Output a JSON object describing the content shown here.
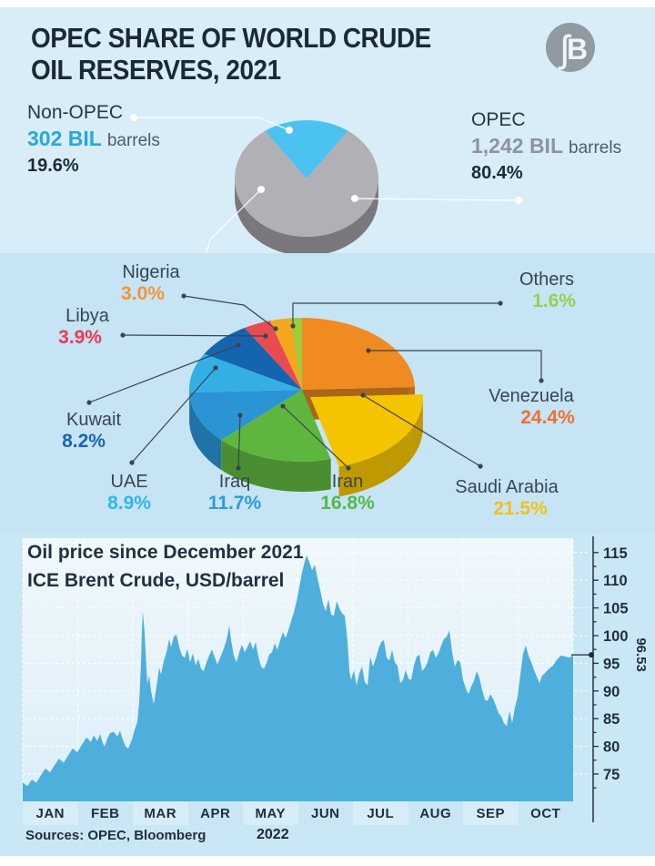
{
  "header": {
    "title_line1": "OPEC SHARE OF WORLD CRUDE",
    "title_line2": "OIL RESERVES, 2021",
    "logo_monogram": "ʃB"
  },
  "reserves_split": {
    "non_opec": {
      "label": "Non-OPEC",
      "amount": "302 BIL",
      "unit": "barrels",
      "share": "19.6%"
    },
    "opec": {
      "label": "OPEC",
      "amount": "1,242 BIL",
      "unit": "barrels",
      "share": "80.4%"
    }
  },
  "oil_chart": {
    "title": "Oil price since December 2021",
    "subtitle": "ICE Brent Crude, USD/barrel",
    "last_value_label": "96.53"
  },
  "footer": {
    "sources": "Sources: OPEC, Bloomberg",
    "year": "2022"
  },
  "colors": {
    "accent_cyan": "#4cc2f1",
    "non_opec_value": "#27a7df",
    "opec_value": "#8e949b",
    "leader_dark": "#3a4450",
    "area_fill": "#4fafdc",
    "area_stroke": "#1b7eb4"
  },
  "chart_data": [
    {
      "type": "pie",
      "name": "world-crude-reserves-split-2021",
      "title": "OPEC share of world crude oil reserves, 2021",
      "slices": [
        {
          "label": "OPEC",
          "value": 80.4,
          "color": "#b1b0b4",
          "annotation": "1,242 BIL barrels"
        },
        {
          "label": "Non-OPEC",
          "value": 19.6,
          "color": "#4cc2f1",
          "annotation": "302 BIL barrels"
        }
      ]
    },
    {
      "type": "pie",
      "name": "opec-members-share-of-reserves",
      "unit": "%",
      "slices": [
        {
          "label": "Venezuela",
          "value": 24.4,
          "color": "#ef8b20",
          "pct_color": "#f07030"
        },
        {
          "label": "Saudi Arabia",
          "value": 21.5,
          "color": "#f5c400",
          "pct_color": "#f2c118"
        },
        {
          "label": "Iran",
          "value": 16.8,
          "color": "#5fb63f",
          "pct_color": "#53b848"
        },
        {
          "label": "Iraq",
          "value": 11.7,
          "color": "#2b94d4",
          "pct_color": "#2e9bd8"
        },
        {
          "label": "UAE",
          "value": 8.9,
          "color": "#33afe4",
          "pct_color": "#2fb7ea"
        },
        {
          "label": "Kuwait",
          "value": 8.2,
          "color": "#1465ae",
          "pct_color": "#1b64b4"
        },
        {
          "label": "Libya",
          "value": 3.9,
          "color": "#e94b52",
          "pct_color": "#e93a52"
        },
        {
          "label": "Nigeria",
          "value": 3.0,
          "color": "#f4a71d",
          "pct_color": "#f0953c"
        },
        {
          "label": "Others",
          "value": 1.6,
          "color": "#9ecb3c",
          "pct_color": "#97d053"
        }
      ]
    },
    {
      "type": "area",
      "name": "brent-price",
      "title": "Oil price since December 2021",
      "subtitle": "ICE Brent Crude, USD/barrel",
      "x_tick_labels": [
        "JAN",
        "FEB",
        "MAR",
        "APR",
        "MAY",
        "JUN",
        "JUL",
        "AUG",
        "SEP",
        "OCT"
      ],
      "x_year": "2022",
      "y_ticks": [
        75,
        80,
        85,
        90,
        95,
        100,
        105,
        110,
        115
      ],
      "y_minor_step": 2.5,
      "ylim": [
        70,
        117.5
      ],
      "last_value": 96.53,
      "points": [
        [
          0,
          73.5
        ],
        [
          5,
          72.8
        ],
        [
          10,
          74
        ],
        [
          15,
          73.4
        ],
        [
          20,
          74.8
        ],
        [
          25,
          76
        ],
        [
          30,
          75.3
        ],
        [
          35,
          76.6
        ],
        [
          40,
          77.8
        ],
        [
          45,
          77
        ],
        [
          50,
          78.4
        ],
        [
          55,
          79.6
        ],
        [
          60,
          78.9
        ],
        [
          65,
          80.3
        ],
        [
          70,
          81.6
        ],
        [
          75,
          80.8
        ],
        [
          78,
          82
        ],
        [
          82,
          81
        ],
        [
          85,
          82.2
        ],
        [
          88,
          80.6
        ],
        [
          90,
          80
        ],
        [
          93,
          81.4
        ],
        [
          96,
          82.4
        ],
        [
          100,
          82.6
        ],
        [
          104,
          81.8
        ],
        [
          107,
          82.8
        ],
        [
          110,
          81.2
        ],
        [
          113,
          80
        ],
        [
          116,
          79.6
        ],
        [
          120,
          81.2
        ],
        [
          123,
          83
        ],
        [
          126,
          84.4
        ],
        [
          128,
          88
        ],
        [
          130,
          95
        ],
        [
          131,
          101
        ],
        [
          132,
          104.3
        ],
        [
          134,
          100.5
        ],
        [
          136,
          94
        ],
        [
          137,
          91.3
        ],
        [
          139,
          92.8
        ],
        [
          141,
          90
        ],
        [
          144,
          87.6
        ],
        [
          147,
          90.8
        ],
        [
          150,
          94.2
        ],
        [
          152,
          93
        ],
        [
          155,
          95.4
        ],
        [
          158,
          97
        ],
        [
          161,
          99.4
        ],
        [
          163,
          98
        ],
        [
          166,
          99.8
        ],
        [
          169,
          100.2
        ],
        [
          172,
          98
        ],
        [
          175,
          96.4
        ],
        [
          178,
          96
        ],
        [
          181,
          97.6
        ],
        [
          184,
          95.2
        ],
        [
          187,
          96.8
        ],
        [
          190,
          94.6
        ],
        [
          193,
          95.8
        ],
        [
          196,
          94
        ],
        [
          199,
          93.6
        ],
        [
          202,
          95.2
        ],
        [
          205,
          96.4
        ],
        [
          208,
          97.5
        ],
        [
          211,
          96.1
        ],
        [
          214,
          94.8
        ],
        [
          217,
          96
        ],
        [
          220,
          97.2
        ],
        [
          224,
          99.2
        ],
        [
          227,
          101.8
        ],
        [
          229,
          99.2
        ],
        [
          232,
          96.4
        ],
        [
          235,
          95.2
        ],
        [
          238,
          97
        ],
        [
          241,
          98.4
        ],
        [
          244,
          97
        ],
        [
          247,
          98
        ],
        [
          250,
          99
        ],
        [
          253,
          97.5
        ],
        [
          256,
          98.8
        ],
        [
          259,
          96.2
        ],
        [
          262,
          94.4
        ],
        [
          265,
          94
        ],
        [
          268,
          95
        ],
        [
          271,
          96.6
        ],
        [
          274,
          97
        ],
        [
          277,
          98.6
        ],
        [
          280,
          97.4
        ],
        [
          283,
          99.2
        ],
        [
          286,
          100.6
        ],
        [
          289,
          99.6
        ],
        [
          292,
          101
        ],
        [
          295,
          102.6
        ],
        [
          298,
          104.2
        ],
        [
          301,
          106.2
        ],
        [
          304,
          108.8
        ],
        [
          307,
          111.4
        ],
        [
          310,
          113.4
        ],
        [
          312,
          114.5
        ],
        [
          315,
          113.3
        ],
        [
          318,
          111.8
        ],
        [
          321,
          112.8
        ],
        [
          324,
          110.4
        ],
        [
          327,
          108.2
        ],
        [
          330,
          105.8
        ],
        [
          333,
          104.4
        ],
        [
          336,
          106.6
        ],
        [
          339,
          103.8
        ],
        [
          342,
          103.6
        ],
        [
          345,
          106.2
        ],
        [
          348,
          105
        ],
        [
          351,
          104
        ],
        [
          354,
          103.6
        ],
        [
          357,
          99
        ],
        [
          359,
          93.6
        ],
        [
          361,
          92
        ],
        [
          364,
          93.8
        ],
        [
          367,
          91
        ],
        [
          370,
          93.2
        ],
        [
          373,
          94.4
        ],
        [
          376,
          91.6
        ],
        [
          379,
          91
        ],
        [
          382,
          96.2
        ],
        [
          385,
          94.4
        ],
        [
          388,
          95.8
        ],
        [
          391,
          97.6
        ],
        [
          394,
          98.8
        ],
        [
          397,
          99.2
        ],
        [
          400,
          96
        ],
        [
          403,
          95.5
        ],
        [
          406,
          97.4
        ],
        [
          409,
          95.2
        ],
        [
          412,
          94.5
        ],
        [
          415,
          91.4
        ],
        [
          418,
          92
        ],
        [
          421,
          93.8
        ],
        [
          424,
          92.2
        ],
        [
          427,
          92
        ],
        [
          430,
          94.6
        ],
        [
          433,
          96.2
        ],
        [
          436,
          96.6
        ],
        [
          439,
          93.6
        ],
        [
          442,
          94.2
        ],
        [
          445,
          95.2
        ],
        [
          448,
          97
        ],
        [
          451,
          97.4
        ],
        [
          454,
          96
        ],
        [
          457,
          96.8
        ],
        [
          460,
          98.2
        ],
        [
          463,
          99.4
        ],
        [
          466,
          99.8
        ],
        [
          469,
          100.9
        ],
        [
          472,
          97
        ],
        [
          475,
          94.4
        ],
        [
          478,
          95.6
        ],
        [
          481,
          95.2
        ],
        [
          484,
          92
        ],
        [
          487,
          90.5
        ],
        [
          490,
          89.4
        ],
        [
          493,
          90.8
        ],
        [
          496,
          91.8
        ],
        [
          499,
          93.6
        ],
        [
          502,
          92.4
        ],
        [
          505,
          90.2
        ],
        [
          508,
          88.4
        ],
        [
          511,
          88.2
        ],
        [
          514,
          89.4
        ],
        [
          517,
          88.6
        ],
        [
          520,
          87.4
        ],
        [
          523,
          86
        ],
        [
          526,
          85.4
        ],
        [
          529,
          84.2
        ],
        [
          532,
          83.6
        ],
        [
          535,
          86.4
        ],
        [
          538,
          84.2
        ],
        [
          541,
          87
        ],
        [
          544,
          89
        ],
        [
          547,
          93
        ],
        [
          550,
          96.8
        ],
        [
          553,
          98.2
        ],
        [
          556,
          96.4
        ],
        [
          559,
          95.2
        ],
        [
          562,
          93.8
        ],
        [
          565,
          92.6
        ],
        [
          568,
          91.4
        ],
        [
          571,
          92.8
        ],
        [
          574,
          93.2
        ],
        [
          577,
          93.8
        ],
        [
          580,
          94.2
        ],
        [
          583,
          94.6
        ],
        [
          586,
          95.4
        ],
        [
          589,
          96
        ],
        [
          592,
          96.4
        ],
        [
          597,
          96.2
        ],
        [
          601,
          96
        ],
        [
          605,
          96.53
        ]
      ]
    }
  ]
}
